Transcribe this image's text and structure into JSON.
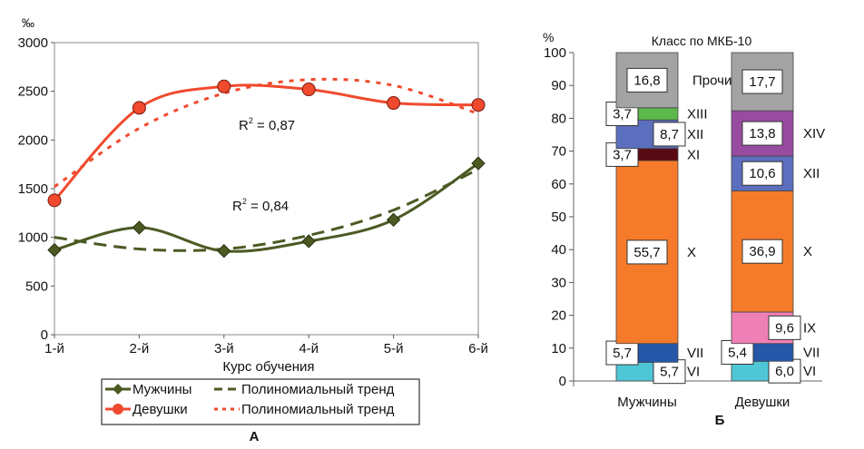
{
  "chart_data": [
    {
      "type": "line",
      "panel_label": "А",
      "ylabel": "‰",
      "xlabel": "Курс обучения",
      "categories": [
        "1-й",
        "2-й",
        "3-й",
        "4-й",
        "5-й",
        "6-й"
      ],
      "ylim": [
        0,
        3000
      ],
      "yticks": [
        0,
        500,
        1000,
        1500,
        2000,
        2500,
        3000
      ],
      "grid": false,
      "legend_position": "bottom",
      "series": [
        {
          "name": "Мужчины",
          "color": "#4b5a23",
          "marker": "diamond",
          "values": [
            870,
            1100,
            860,
            960,
            1180,
            1760
          ]
        },
        {
          "name": "Девушки",
          "color": "#f04a2e",
          "marker": "circle",
          "values": [
            1380,
            2330,
            2550,
            2520,
            2380,
            2360
          ]
        },
        {
          "name": "Полиномиальный тренд",
          "trend_of": "Мужчины",
          "color": "#4b5a23",
          "style": "dashed",
          "values": [
            1000,
            880,
            880,
            1020,
            1280,
            1700
          ]
        },
        {
          "name": "Полиномиальный тренд",
          "trend_of": "Девушки",
          "color": "#f04a2e",
          "style": "dotted",
          "values": [
            1520,
            2120,
            2480,
            2620,
            2560,
            2270
          ]
        }
      ],
      "annotations": [
        {
          "text": "R",
          "sup": "2",
          "rest": " = 0,87",
          "series": "Девушки"
        },
        {
          "text": "R",
          "sup": "2",
          "rest": " = 0,84",
          "series": "Мужчины"
        }
      ]
    },
    {
      "type": "bar",
      "stacked": true,
      "panel_label": "Б",
      "ylabel": "%",
      "title": "Класс по МКБ-10",
      "categories": [
        "Мужчины",
        "Девушки"
      ],
      "ylim": [
        0,
        100
      ],
      "yticks": [
        0,
        10,
        20,
        30,
        40,
        50,
        60,
        70,
        80,
        90,
        100
      ],
      "grid": false,
      "stacks": [
        {
          "category": "Мужчины",
          "segments": [
            {
              "class": "VI",
              "value": 5.7,
              "label": "5,7",
              "color": "#4fc6d6"
            },
            {
              "class": "VII",
              "value": 5.7,
              "label": "5,7",
              "color": "#2457a8"
            },
            {
              "class": "X",
              "value": 55.7,
              "label": "55,7",
              "color": "#f57b2b"
            },
            {
              "class": "XI",
              "value": 3.7,
              "label": "3,7",
              "color": "#5a0a12"
            },
            {
              "class": "XII",
              "value": 8.7,
              "label": "8,7",
              "color": "#5b6fbe"
            },
            {
              "class": "XIII",
              "value": 3.7,
              "label": "3,7",
              "color": "#5cb84a"
            },
            {
              "class": "Прочие",
              "value": 16.8,
              "label": "16,8",
              "color": "#a3a3a3"
            }
          ]
        },
        {
          "category": "Девушки",
          "segments": [
            {
              "class": "VI",
              "value": 6.0,
              "label": "6,0",
              "color": "#4fc6d6"
            },
            {
              "class": "VII",
              "value": 5.4,
              "label": "5,4",
              "color": "#2457a8"
            },
            {
              "class": "IX",
              "value": 9.6,
              "label": "9,6",
              "color": "#ef80b6"
            },
            {
              "class": "X",
              "value": 36.9,
              "label": "36,9",
              "color": "#f57b2b"
            },
            {
              "class": "XII",
              "value": 10.6,
              "label": "10,6",
              "color": "#5b6fbe"
            },
            {
              "class": "XIV",
              "value": 13.8,
              "label": "13,8",
              "color": "#984ca0"
            },
            {
              "class": "Прочие",
              "value": 17.7,
              "label": "17,7",
              "color": "#a3a3a3"
            }
          ]
        }
      ]
    }
  ]
}
